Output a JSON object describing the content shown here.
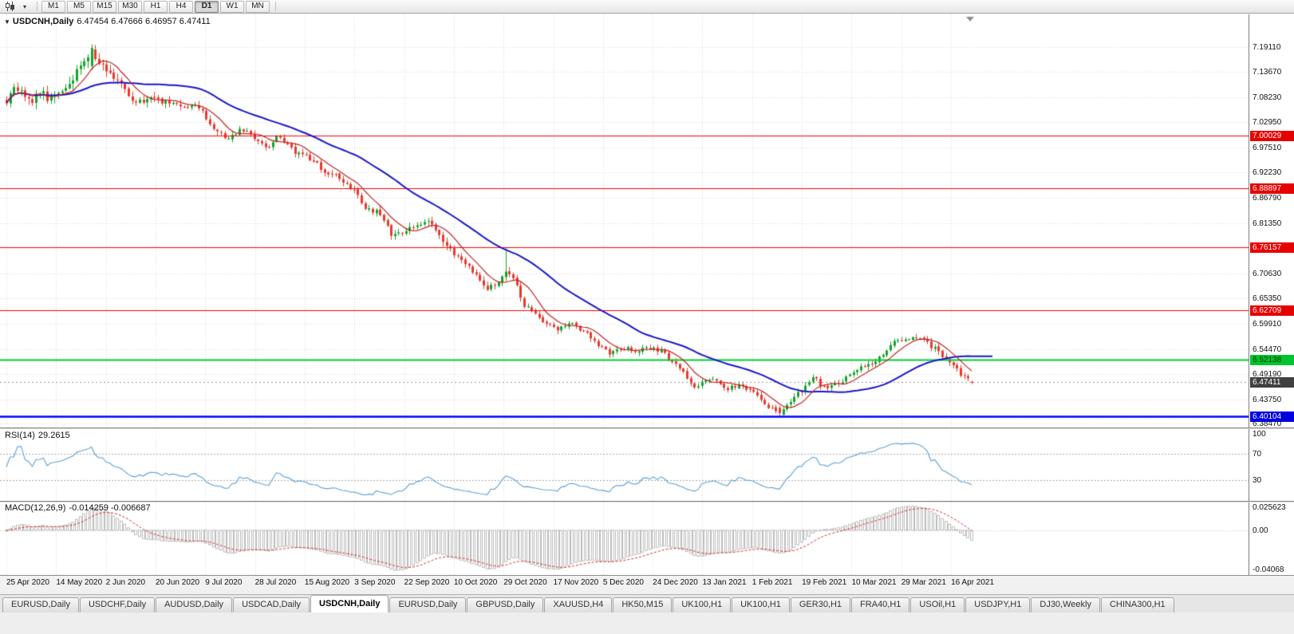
{
  "toolbar": {
    "timeframes": [
      "M1",
      "M5",
      "M15",
      "M30",
      "H1",
      "H4",
      "D1",
      "W1",
      "MN"
    ],
    "active_timeframe": "D1",
    "dropdown_glyph": "▾"
  },
  "main_chart": {
    "collapse_glyph": "▼",
    "title": "USDCNH,Daily",
    "ohlc_text": "6.47454 6.47666 6.46957 6.47411"
  },
  "rsi_panel": {
    "label": "RSI(14)",
    "value": "29.2615",
    "axis": [
      {
        "label": "100",
        "v": 100
      },
      {
        "label": "70",
        "v": 70
      },
      {
        "label": "30",
        "v": 30
      }
    ]
  },
  "macd_panel": {
    "label": "MACD(12,26,9)",
    "values": "-0.014259 -0.006687",
    "axis_top": "0.025623",
    "axis_zero": "0.00",
    "axis_bottom": "-0.04068"
  },
  "price_axis": {
    "ticks": [
      "7.19110",
      "7.13670",
      "7.08230",
      "7.02950",
      "6.97510",
      "6.92230",
      "6.86790",
      "6.81350",
      "6.70630",
      "6.65350",
      "6.59910",
      "6.54470",
      "6.49190",
      "6.43750",
      "6.38470"
    ],
    "badges": [
      {
        "text": "7.00029",
        "price": 7.00029,
        "bg": "#e60000",
        "fg": "#ffffff",
        "current": false
      },
      {
        "text": "6.88897",
        "price": 6.88897,
        "bg": "#e60000",
        "fg": "#ffffff",
        "current": false
      },
      {
        "text": "6.76157",
        "price": 6.76157,
        "bg": "#e60000",
        "fg": "#ffffff",
        "current": false
      },
      {
        "text": "6.62709",
        "price": 6.62709,
        "bg": "#e60000",
        "fg": "#ffffff",
        "current": false
      },
      {
        "text": "6.52138",
        "price": 6.52138,
        "bg": "#00c42e",
        "fg": "#003300",
        "current": false
      },
      {
        "text": "6.47411",
        "price": 6.47411,
        "bg": "#404040",
        "fg": "#ffffff",
        "current": true
      },
      {
        "text": "6.40104",
        "price": 6.40104,
        "bg": "#0000e0",
        "fg": "#ffffff",
        "current": false
      }
    ]
  },
  "date_axis": [
    "25 Apr 2020",
    "14 May 2020",
    "2 Jun 2020",
    "20 Jun 2020",
    "9 Jul 2020",
    "28 Jul 2020",
    "15 Aug 2020",
    "3 Sep 2020",
    "22 Sep 2020",
    "10 Oct 2020",
    "29 Oct 2020",
    "17 Nov 2020",
    "5 Dec 2020",
    "24 Dec 2020",
    "13 Jan 2021",
    "1 Feb 2021",
    "19 Feb 2021",
    "10 Mar 2021",
    "29 Mar 2021",
    "16 Apr 2021"
  ],
  "tabs": {
    "active_index": 4,
    "items": [
      "EURUSD,Daily",
      "USDCHF,Daily",
      "AUDUSD,Daily",
      "USDCAD,Daily",
      "USDCNH,Daily",
      "EURUSD,Daily",
      "GBPUSD,Daily",
      "XAUUSD,H4",
      "HK50,M15",
      "UK100,H1",
      "UK100,H1",
      "GER30,H1",
      "FRA40,H1",
      "USOil,H1",
      "USDJPY,H1",
      "DJ30,Weekly",
      "CHINA300,H1"
    ]
  },
  "colors": {
    "bull": "#15a32b",
    "bear": "#e83a2e",
    "ma_fast": "#c42222",
    "ma_slow": "#1818c8",
    "rsi_line": "#5ba0d6",
    "macd_hist": "#bcbcbc",
    "macd_signal": "#d63030",
    "grid": "#dadada",
    "level_dash": "#a8a8a8"
  },
  "chart_data": {
    "type": "candlestick",
    "symbol": "USDCNH",
    "timeframe": "Daily",
    "bars": 262,
    "x_first": "25 Apr 2020",
    "x_last": "16 Apr 2021",
    "price_range": [
      6.377,
      7.2568
    ],
    "high_of_period": 7.196,
    "low_of_period": 6.401,
    "last_candle": {
      "open": 6.47454,
      "high": 6.47666,
      "low": 6.46957,
      "close": 6.47411
    },
    "close_path": [
      [
        0.0,
        7.075
      ],
      [
        0.008,
        7.108
      ],
      [
        0.016,
        7.088
      ],
      [
        0.026,
        7.072
      ],
      [
        0.034,
        7.1
      ],
      [
        0.044,
        7.08
      ],
      [
        0.055,
        7.092
      ],
      [
        0.068,
        7.125
      ],
      [
        0.078,
        7.152
      ],
      [
        0.085,
        7.175
      ],
      [
        0.088,
        7.19
      ],
      [
        0.094,
        7.16
      ],
      [
        0.102,
        7.142
      ],
      [
        0.112,
        7.128
      ],
      [
        0.118,
        7.118
      ],
      [
        0.126,
        7.088
      ],
      [
        0.136,
        7.07
      ],
      [
        0.148,
        7.082
      ],
      [
        0.16,
        7.075
      ],
      [
        0.169,
        7.072
      ],
      [
        0.18,
        7.058
      ],
      [
        0.192,
        7.068
      ],
      [
        0.204,
        7.048
      ],
      [
        0.212,
        7.022
      ],
      [
        0.219,
        7.008
      ],
      [
        0.23,
        6.995
      ],
      [
        0.243,
        7.015
      ],
      [
        0.256,
        6.998
      ],
      [
        0.266,
        6.985
      ],
      [
        0.271,
        6.978
      ],
      [
        0.282,
        7.0
      ],
      [
        0.294,
        6.972
      ],
      [
        0.306,
        6.96
      ],
      [
        0.321,
        6.942
      ],
      [
        0.332,
        6.92
      ],
      [
        0.345,
        6.912
      ],
      [
        0.36,
        6.885
      ],
      [
        0.373,
        6.845
      ],
      [
        0.386,
        6.835
      ],
      [
        0.4,
        6.785
      ],
      [
        0.412,
        6.795
      ],
      [
        0.424,
        6.812
      ],
      [
        0.436,
        6.818
      ],
      [
        0.45,
        6.782
      ],
      [
        0.462,
        6.748
      ],
      [
        0.474,
        6.73
      ],
      [
        0.486,
        6.7
      ],
      [
        0.498,
        6.675
      ],
      [
        0.51,
        6.69
      ],
      [
        0.518,
        6.712
      ],
      [
        0.526,
        6.692
      ],
      [
        0.536,
        6.64
      ],
      [
        0.548,
        6.618
      ],
      [
        0.56,
        6.6
      ],
      [
        0.572,
        6.585
      ],
      [
        0.585,
        6.602
      ],
      [
        0.598,
        6.582
      ],
      [
        0.61,
        6.56
      ],
      [
        0.625,
        6.535
      ],
      [
        0.638,
        6.548
      ],
      [
        0.65,
        6.54
      ],
      [
        0.662,
        6.545
      ],
      [
        0.677,
        6.542
      ],
      [
        0.688,
        6.52
      ],
      [
        0.7,
        6.5
      ],
      [
        0.712,
        6.465
      ],
      [
        0.722,
        6.475
      ],
      [
        0.734,
        6.482
      ],
      [
        0.746,
        6.46
      ],
      [
        0.758,
        6.468
      ],
      [
        0.77,
        6.458
      ],
      [
        0.782,
        6.432
      ],
      [
        0.792,
        6.415
      ],
      [
        0.8,
        6.406
      ],
      [
        0.81,
        6.428
      ],
      [
        0.82,
        6.45
      ],
      [
        0.828,
        6.462
      ],
      [
        0.836,
        6.488
      ],
      [
        0.846,
        6.46
      ],
      [
        0.856,
        6.468
      ],
      [
        0.866,
        6.476
      ],
      [
        0.878,
        6.498
      ],
      [
        0.888,
        6.506
      ],
      [
        0.898,
        6.512
      ],
      [
        0.908,
        6.532
      ],
      [
        0.918,
        6.558
      ],
      [
        0.928,
        6.562
      ],
      [
        0.938,
        6.57
      ],
      [
        0.946,
        6.566
      ],
      [
        0.954,
        6.556
      ],
      [
        0.962,
        6.546
      ],
      [
        0.97,
        6.528
      ],
      [
        0.978,
        6.512
      ],
      [
        0.986,
        6.496
      ],
      [
        0.994,
        6.482
      ],
      [
        1.0,
        6.4741
      ]
    ],
    "volatility_path": [
      [
        0,
        1.5
      ],
      [
        0.06,
        1.7
      ],
      [
        0.09,
        1.9
      ],
      [
        0.12,
        1.3
      ],
      [
        0.2,
        1.1
      ],
      [
        0.3,
        1.0
      ],
      [
        0.45,
        1.1
      ],
      [
        0.55,
        1.0
      ],
      [
        0.65,
        0.85
      ],
      [
        0.73,
        0.8
      ],
      [
        0.8,
        1.0
      ],
      [
        0.85,
        0.9
      ],
      [
        0.93,
        0.95
      ],
      [
        1,
        0.85
      ]
    ],
    "horizontal_lines": [
      {
        "price": 7.00029,
        "color": "#ff0000",
        "width": 1.2,
        "role": "resistance"
      },
      {
        "price": 6.88897,
        "color": "#ff0000",
        "width": 1.2,
        "role": "resistance"
      },
      {
        "price": 6.76157,
        "color": "#ff0000",
        "width": 1.2,
        "role": "resistance"
      },
      {
        "price": 6.62709,
        "color": "#ff0000",
        "width": 1.2,
        "role": "resistance"
      },
      {
        "price": 6.52138,
        "color": "#00cc33",
        "width": 2,
        "role": "support"
      },
      {
        "price": 6.40104,
        "color": "#0000ff",
        "width": 2.5,
        "role": "support"
      }
    ],
    "moving_averages": [
      {
        "period": 8,
        "color": "#c42222",
        "name": "MA-fast"
      },
      {
        "period": 34,
        "color": "#1818c8",
        "name": "MA-slow"
      }
    ],
    "indicators": [
      {
        "name": "RSI",
        "period": 14,
        "current": 29.2615,
        "overbought": 70,
        "oversold": 30
      },
      {
        "name": "MACD",
        "fast": 12,
        "slow": 26,
        "signal": 9,
        "current_macd": -0.014259,
        "current_signal": -0.006687,
        "axis_max": 0.025623,
        "axis_min": -0.04068
      }
    ]
  }
}
